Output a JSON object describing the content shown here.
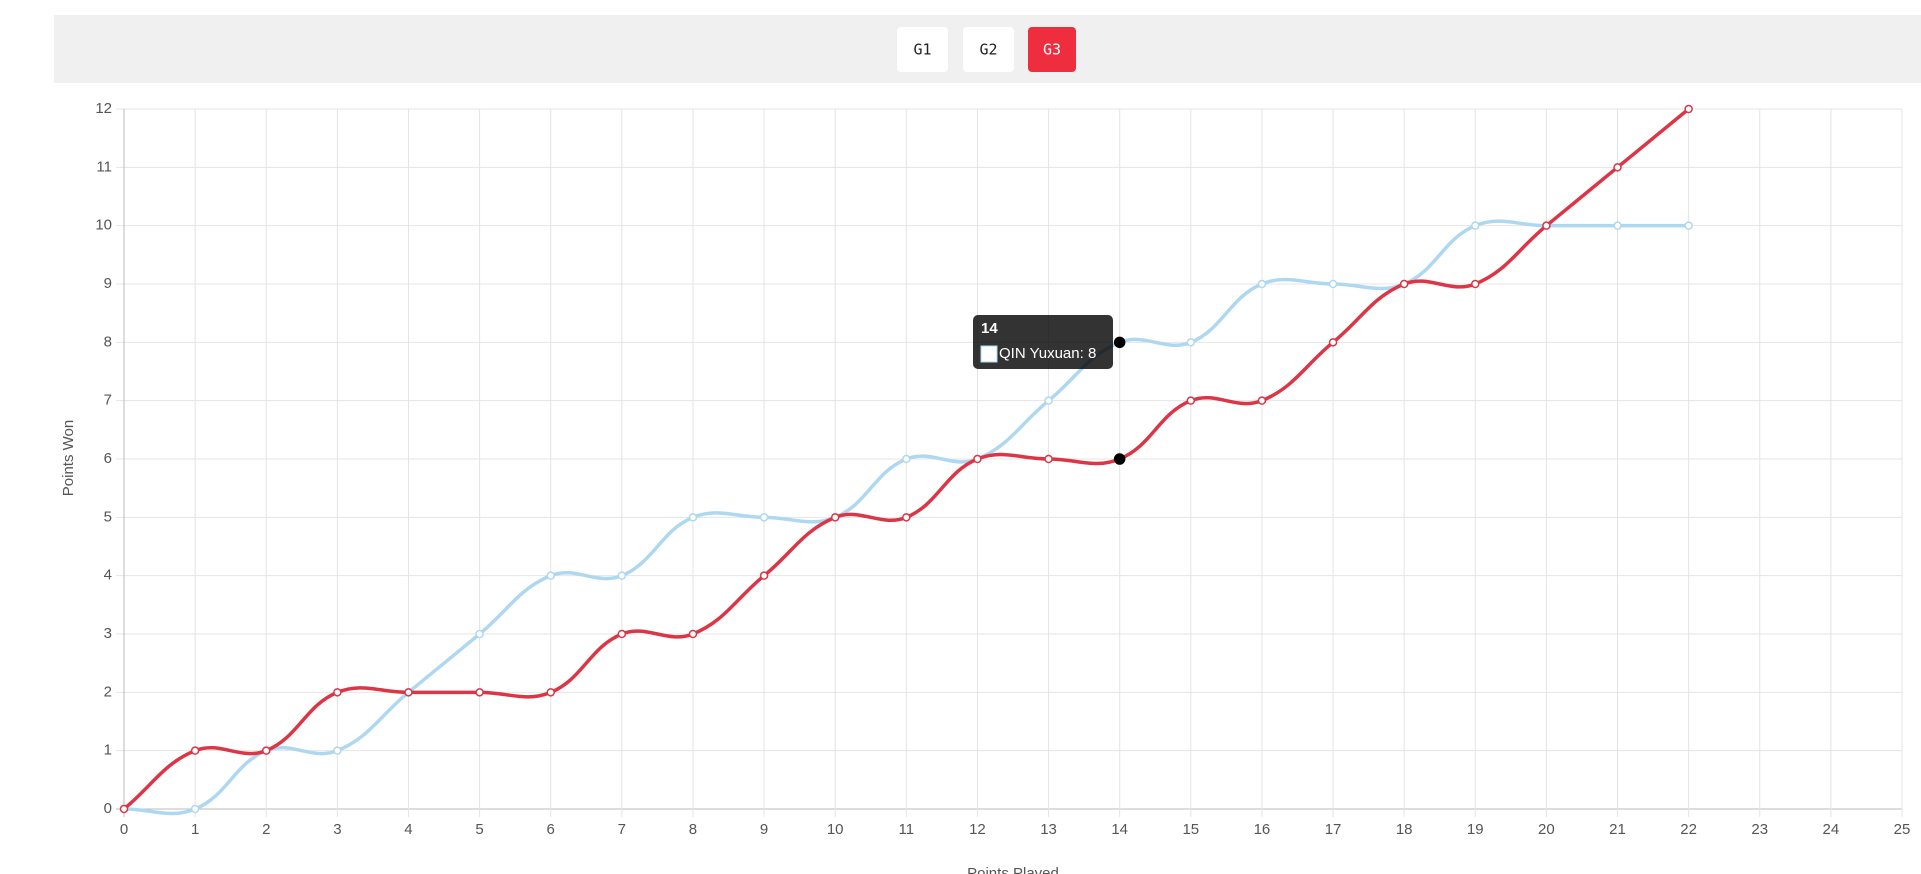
{
  "tabs": {
    "items": [
      "G1",
      "G2",
      "G3"
    ],
    "active": 2
  },
  "chart_data": {
    "type": "line",
    "xlabel": "Points Played",
    "ylabel": "Points Won",
    "x": [
      0,
      1,
      2,
      3,
      4,
      5,
      6,
      7,
      8,
      9,
      10,
      11,
      12,
      13,
      14,
      15,
      16,
      17,
      18,
      19,
      20,
      21,
      22
    ],
    "series": [
      {
        "name": "QIN Yuxuan",
        "color": "#aed8f0",
        "values": [
          0,
          0,
          1,
          1,
          2,
          3,
          4,
          4,
          5,
          5,
          5,
          6,
          6,
          7,
          8,
          8,
          9,
          9,
          9,
          10,
          10,
          10,
          10
        ]
      },
      {
        "color": "#dc3545",
        "values": [
          0,
          1,
          1,
          2,
          2,
          2,
          2,
          3,
          3,
          4,
          5,
          5,
          6,
          6,
          6,
          7,
          7,
          8,
          9,
          9,
          10,
          11,
          12
        ]
      }
    ],
    "xlim": [
      0,
      25
    ],
    "xticks": [
      0,
      1,
      2,
      3,
      4,
      5,
      6,
      7,
      8,
      9,
      10,
      11,
      12,
      13,
      14,
      15,
      16,
      17,
      18,
      19,
      20,
      21,
      22,
      23,
      24,
      25
    ],
    "ylim": [
      0,
      12
    ],
    "yticks": [
      0,
      1,
      2,
      3,
      4,
      5,
      6,
      7,
      8,
      9,
      10,
      11,
      12
    ],
    "grid": true,
    "tooltip": {
      "title": "14",
      "text": "QIN Yuxuan: 8",
      "index": 14
    }
  }
}
